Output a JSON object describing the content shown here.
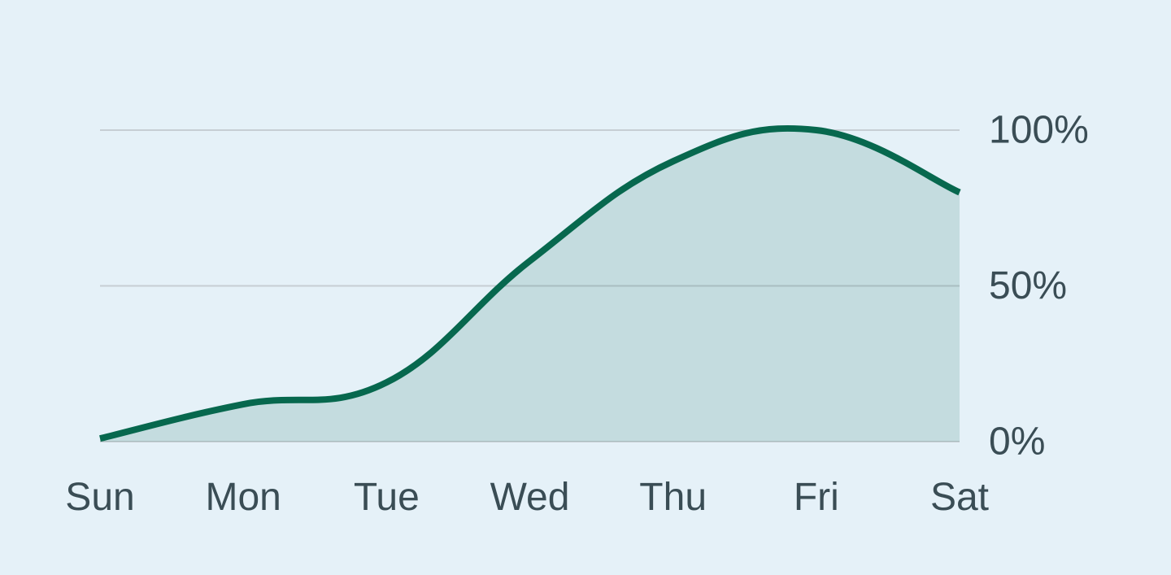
{
  "chart_data": {
    "type": "area",
    "title": "",
    "xlabel": "",
    "ylabel": "",
    "categories": [
      "Sun",
      "Mon",
      "Tue",
      "Wed",
      "Thu",
      "Fri",
      "Sat"
    ],
    "values": [
      1,
      12,
      19,
      58,
      90,
      100,
      80
    ],
    "ylim": [
      0,
      100
    ],
    "yticks": [
      {
        "value": 0,
        "label": "0%"
      },
      {
        "value": 50,
        "label": "50%"
      },
      {
        "value": 100,
        "label": "100%"
      }
    ],
    "grid": true,
    "legend": "none",
    "smooth": true,
    "colors": {
      "background": "#e5f1f8",
      "line": "#07684e",
      "fill": "rgba(7, 104, 78, 0.15)",
      "gridline": "#c6ced4",
      "label": "#3a4d55"
    }
  }
}
